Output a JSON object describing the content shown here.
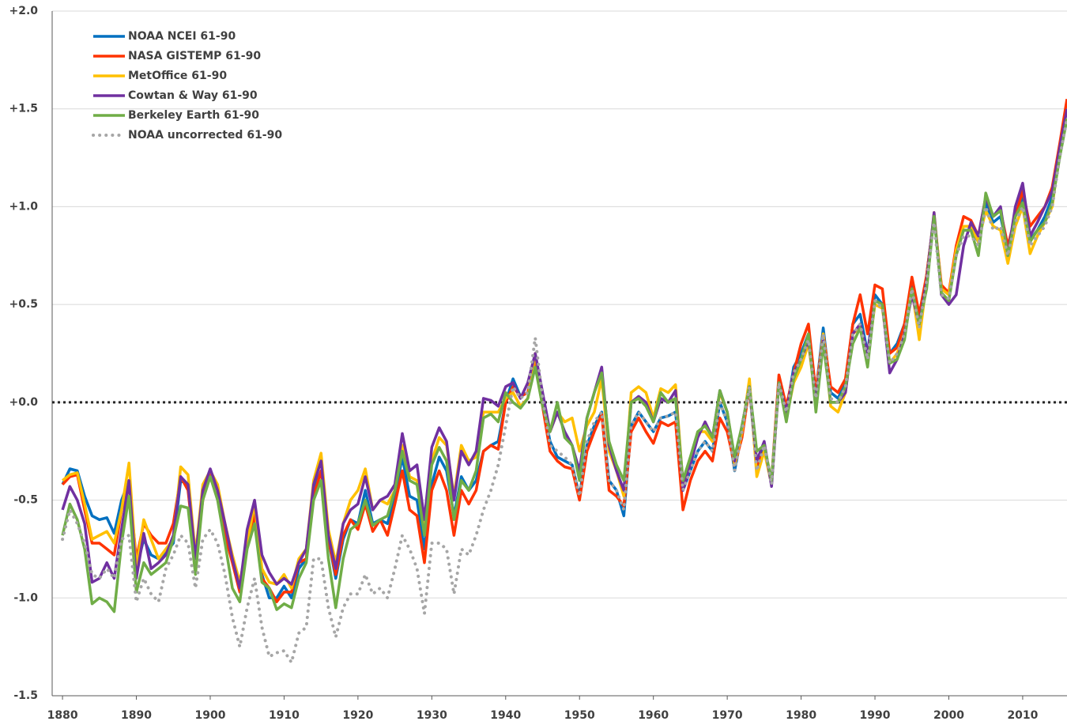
{
  "chart_data": {
    "type": "line",
    "x": [
      1880,
      1881,
      1882,
      1883,
      1884,
      1885,
      1886,
      1887,
      1888,
      1889,
      1890,
      1891,
      1892,
      1893,
      1894,
      1895,
      1896,
      1897,
      1898,
      1899,
      1900,
      1901,
      1902,
      1903,
      1904,
      1905,
      1906,
      1907,
      1908,
      1909,
      1910,
      1911,
      1912,
      1913,
      1914,
      1915,
      1916,
      1917,
      1918,
      1919,
      1920,
      1921,
      1922,
      1923,
      1924,
      1925,
      1926,
      1927,
      1928,
      1929,
      1930,
      1931,
      1932,
      1933,
      1934,
      1935,
      1936,
      1937,
      1938,
      1939,
      1940,
      1941,
      1942,
      1943,
      1944,
      1945,
      1946,
      1947,
      1948,
      1949,
      1950,
      1951,
      1952,
      1953,
      1954,
      1955,
      1956,
      1957,
      1958,
      1959,
      1960,
      1961,
      1962,
      1963,
      1964,
      1965,
      1966,
      1967,
      1968,
      1969,
      1970,
      1971,
      1972,
      1973,
      1974,
      1975,
      1976,
      1977,
      1978,
      1979,
      1980,
      1981,
      1982,
      1983,
      1984,
      1985,
      1986,
      1987,
      1988,
      1989,
      1990,
      1991,
      1992,
      1993,
      1994,
      1995,
      1996,
      1997,
      1998,
      1999,
      2000,
      2001,
      2002,
      2003,
      2004,
      2005,
      2006,
      2007,
      2008,
      2009,
      2010,
      2011,
      2012,
      2013,
      2014,
      2015,
      2016
    ],
    "series": [
      {
        "name": "NOAA NCEI 61-90",
        "color": "#0070c0",
        "values": [
          -0.42,
          -0.34,
          -0.35,
          -0.48,
          -0.58,
          -0.6,
          -0.59,
          -0.67,
          -0.5,
          -0.4,
          -0.85,
          -0.7,
          -0.78,
          -0.8,
          -0.77,
          -0.72,
          -0.4,
          -0.42,
          -0.78,
          -0.45,
          -0.36,
          -0.45,
          -0.65,
          -0.8,
          -0.95,
          -0.72,
          -0.55,
          -0.88,
          -1.0,
          -1.0,
          -0.94,
          -1.0,
          -0.85,
          -0.8,
          -0.45,
          -0.35,
          -0.7,
          -0.9,
          -0.7,
          -0.6,
          -0.62,
          -0.45,
          -0.62,
          -0.6,
          -0.62,
          -0.48,
          -0.28,
          -0.48,
          -0.5,
          -0.75,
          -0.42,
          -0.28,
          -0.35,
          -0.58,
          -0.38,
          -0.45,
          -0.4,
          -0.25,
          -0.22,
          -0.2,
          0.0,
          0.12,
          0.03,
          0.05,
          0.22,
          0.0,
          -0.2,
          -0.28,
          -0.3,
          -0.32,
          -0.48,
          -0.22,
          -0.12,
          -0.05,
          -0.4,
          -0.45,
          -0.58,
          -0.12,
          -0.05,
          -0.1,
          -0.15,
          -0.08,
          -0.07,
          -0.05,
          -0.45,
          -0.35,
          -0.25,
          -0.2,
          -0.25,
          0.0,
          -0.1,
          -0.35,
          -0.15,
          0.08,
          -0.35,
          -0.22,
          -0.42,
          0.1,
          -0.05,
          0.18,
          0.25,
          0.35,
          0.05,
          0.38,
          0.05,
          0.02,
          0.1,
          0.4,
          0.45,
          0.25,
          0.55,
          0.5,
          0.25,
          0.3,
          0.4,
          0.6,
          0.4,
          0.65,
          0.95,
          0.58,
          0.55,
          0.78,
          0.88,
          0.88,
          0.82,
          1.02,
          0.92,
          0.95,
          0.78,
          0.95,
          1.05,
          0.83,
          0.88,
          0.95,
          1.05,
          1.3,
          1.5
        ]
      },
      {
        "name": "NASA GISTEMP 61-90",
        "color": "#ff3300",
        "values": [
          -0.42,
          -0.38,
          -0.37,
          -0.55,
          -0.72,
          -0.72,
          -0.75,
          -0.78,
          -0.55,
          -0.42,
          -0.8,
          -0.62,
          -0.68,
          -0.72,
          -0.72,
          -0.62,
          -0.38,
          -0.45,
          -0.8,
          -0.5,
          -0.36,
          -0.45,
          -0.68,
          -0.82,
          -0.97,
          -0.74,
          -0.58,
          -0.9,
          -0.95,
          -1.02,
          -0.97,
          -0.97,
          -0.82,
          -0.8,
          -0.48,
          -0.35,
          -0.7,
          -0.88,
          -0.68,
          -0.6,
          -0.65,
          -0.52,
          -0.66,
          -0.6,
          -0.68,
          -0.52,
          -0.35,
          -0.55,
          -0.58,
          -0.82,
          -0.45,
          -0.35,
          -0.45,
          -0.68,
          -0.45,
          -0.52,
          -0.45,
          -0.25,
          -0.22,
          -0.24,
          0.0,
          0.08,
          0.03,
          0.05,
          0.2,
          -0.02,
          -0.25,
          -0.3,
          -0.33,
          -0.34,
          -0.5,
          -0.25,
          -0.15,
          -0.06,
          -0.45,
          -0.48,
          -0.53,
          -0.15,
          -0.08,
          -0.15,
          -0.21,
          -0.1,
          -0.12,
          -0.1,
          -0.55,
          -0.4,
          -0.3,
          -0.25,
          -0.3,
          -0.08,
          -0.15,
          -0.32,
          -0.18,
          0.08,
          -0.32,
          -0.25,
          -0.4,
          0.14,
          -0.02,
          0.15,
          0.3,
          0.4,
          0.05,
          0.35,
          0.08,
          0.05,
          0.12,
          0.4,
          0.55,
          0.35,
          0.6,
          0.58,
          0.25,
          0.28,
          0.4,
          0.64,
          0.45,
          0.65,
          0.95,
          0.6,
          0.56,
          0.8,
          0.95,
          0.93,
          0.85,
          1.05,
          0.95,
          0.98,
          0.8,
          0.95,
          1.08,
          0.9,
          0.95,
          1.0,
          1.1,
          1.32,
          1.55
        ]
      },
      {
        "name": "MetOffice 61-90",
        "color": "#ffc000",
        "values": [
          -0.4,
          -0.37,
          -0.36,
          -0.52,
          -0.7,
          -0.68,
          -0.66,
          -0.72,
          -0.55,
          -0.31,
          -0.85,
          -0.6,
          -0.7,
          -0.8,
          -0.75,
          -0.7,
          -0.33,
          -0.37,
          -0.78,
          -0.42,
          -0.35,
          -0.42,
          -0.62,
          -0.78,
          -0.92,
          -0.72,
          -0.52,
          -0.85,
          -0.92,
          -0.93,
          -0.88,
          -0.95,
          -0.8,
          -0.75,
          -0.4,
          -0.26,
          -0.65,
          -0.82,
          -0.62,
          -0.5,
          -0.45,
          -0.34,
          -0.55,
          -0.5,
          -0.52,
          -0.45,
          -0.22,
          -0.38,
          -0.4,
          -0.65,
          -0.3,
          -0.18,
          -0.22,
          -0.48,
          -0.22,
          -0.3,
          -0.28,
          -0.05,
          -0.05,
          -0.05,
          0.02,
          0.05,
          -0.02,
          0.02,
          0.25,
          0.0,
          -0.15,
          -0.05,
          -0.1,
          -0.08,
          -0.25,
          -0.12,
          -0.05,
          0.12,
          -0.25,
          -0.35,
          -0.48,
          0.05,
          0.08,
          0.05,
          -0.08,
          0.07,
          0.05,
          0.09,
          -0.42,
          -0.3,
          -0.15,
          -0.15,
          -0.2,
          0.05,
          -0.05,
          -0.32,
          -0.15,
          0.12,
          -0.38,
          -0.25,
          -0.42,
          0.1,
          -0.08,
          0.1,
          0.18,
          0.3,
          0.0,
          0.35,
          -0.02,
          -0.05,
          0.05,
          0.35,
          0.38,
          0.22,
          0.5,
          0.48,
          0.2,
          0.25,
          0.35,
          0.58,
          0.32,
          0.62,
          0.97,
          0.58,
          0.55,
          0.78,
          0.9,
          0.9,
          0.82,
          0.98,
          0.9,
          0.88,
          0.71,
          0.9,
          1.0,
          0.76,
          0.85,
          0.92,
          1.0,
          1.28,
          1.45
        ]
      },
      {
        "name": "Cowtan & Way 61-90",
        "color": "#7030a0",
        "values": [
          -0.55,
          -0.43,
          -0.5,
          -0.62,
          -0.92,
          -0.9,
          -0.82,
          -0.9,
          -0.65,
          -0.4,
          -0.9,
          -0.67,
          -0.85,
          -0.82,
          -0.78,
          -0.68,
          -0.38,
          -0.42,
          -0.8,
          -0.45,
          -0.34,
          -0.45,
          -0.62,
          -0.8,
          -0.95,
          -0.65,
          -0.5,
          -0.78,
          -0.87,
          -0.93,
          -0.9,
          -0.93,
          -0.82,
          -0.75,
          -0.42,
          -0.3,
          -0.68,
          -0.85,
          -0.62,
          -0.55,
          -0.52,
          -0.38,
          -0.55,
          -0.5,
          -0.48,
          -0.42,
          -0.16,
          -0.35,
          -0.32,
          -0.6,
          -0.23,
          -0.13,
          -0.2,
          -0.5,
          -0.25,
          -0.32,
          -0.25,
          0.02,
          0.01,
          -0.02,
          0.08,
          0.1,
          0.02,
          0.1,
          0.25,
          0.05,
          -0.15,
          -0.05,
          -0.15,
          -0.22,
          -0.35,
          -0.08,
          0.05,
          0.18,
          -0.22,
          -0.35,
          -0.45,
          0.0,
          0.03,
          0.0,
          -0.1,
          0.02,
          0.0,
          0.06,
          -0.45,
          -0.32,
          -0.18,
          -0.1,
          -0.18,
          0.06,
          -0.05,
          -0.3,
          -0.12,
          0.08,
          -0.3,
          -0.2,
          -0.43,
          0.1,
          -0.05,
          0.15,
          0.22,
          0.32,
          0.0,
          0.32,
          0.0,
          0.0,
          0.05,
          0.35,
          0.4,
          0.25,
          0.52,
          0.5,
          0.15,
          0.22,
          0.35,
          0.55,
          0.4,
          0.62,
          0.97,
          0.55,
          0.5,
          0.55,
          0.8,
          0.92,
          0.85,
          1.05,
          0.95,
          1.0,
          0.75,
          1.0,
          1.12,
          0.85,
          0.92,
          1.0,
          1.08,
          1.3,
          1.5
        ]
      },
      {
        "name": "Berkeley Earth 61-90",
        "color": "#70ad47",
        "values": [
          -0.68,
          -0.52,
          -0.6,
          -0.75,
          -1.03,
          -1.0,
          -1.02,
          -1.07,
          -0.72,
          -0.48,
          -0.97,
          -0.82,
          -0.88,
          -0.85,
          -0.82,
          -0.7,
          -0.53,
          -0.54,
          -0.88,
          -0.5,
          -0.38,
          -0.5,
          -0.72,
          -0.95,
          -1.02,
          -0.75,
          -0.62,
          -0.92,
          -0.95,
          -1.06,
          -1.03,
          -1.05,
          -0.9,
          -0.82,
          -0.5,
          -0.4,
          -0.8,
          -1.05,
          -0.8,
          -0.65,
          -0.62,
          -0.5,
          -0.63,
          -0.6,
          -0.58,
          -0.45,
          -0.25,
          -0.4,
          -0.42,
          -0.68,
          -0.32,
          -0.23,
          -0.3,
          -0.6,
          -0.4,
          -0.45,
          -0.35,
          -0.08,
          -0.06,
          -0.1,
          0.05,
          0.0,
          -0.03,
          0.02,
          0.18,
          -0.02,
          -0.15,
          0.0,
          -0.18,
          -0.22,
          -0.4,
          -0.08,
          0.05,
          0.15,
          -0.2,
          -0.32,
          -0.4,
          0.0,
          0.02,
          -0.02,
          -0.1,
          0.05,
          0.0,
          0.02,
          -0.4,
          -0.28,
          -0.15,
          -0.12,
          -0.18,
          0.06,
          -0.05,
          -0.28,
          -0.12,
          0.08,
          -0.25,
          -0.22,
          -0.4,
          0.1,
          -0.1,
          0.12,
          0.22,
          0.35,
          -0.05,
          0.3,
          0.0,
          0.0,
          0.08,
          0.3,
          0.38,
          0.18,
          0.52,
          0.5,
          0.2,
          0.22,
          0.32,
          0.58,
          0.4,
          0.58,
          0.95,
          0.56,
          0.52,
          0.75,
          0.88,
          0.88,
          0.75,
          1.07,
          0.95,
          0.98,
          0.75,
          0.95,
          1.02,
          0.82,
          0.88,
          0.92,
          1.02,
          1.25,
          1.45
        ]
      },
      {
        "name": "NOAA uncorrected 61-90",
        "color": "#a6a6a6",
        "dash": "dot",
        "values": [
          -0.7,
          -0.55,
          -0.62,
          -0.72,
          -0.88,
          -0.9,
          -0.85,
          -0.9,
          -0.7,
          -0.68,
          -1.02,
          -0.9,
          -0.98,
          -1.02,
          -0.85,
          -0.78,
          -0.68,
          -0.72,
          -0.95,
          -0.7,
          -0.65,
          -0.72,
          -0.88,
          -1.1,
          -1.25,
          -1.05,
          -0.9,
          -1.15,
          -1.3,
          -1.28,
          -1.27,
          -1.33,
          -1.18,
          -1.15,
          -0.8,
          -0.8,
          -1.05,
          -1.2,
          -1.05,
          -0.98,
          -0.98,
          -0.88,
          -0.98,
          -0.95,
          -1.0,
          -0.85,
          -0.68,
          -0.75,
          -0.85,
          -1.08,
          -0.72,
          -0.72,
          -0.75,
          -0.98,
          -0.75,
          -0.78,
          -0.68,
          -0.55,
          -0.45,
          -0.32,
          -0.12,
          0.08,
          0.02,
          0.05,
          0.33,
          0.02,
          -0.22,
          -0.25,
          -0.28,
          -0.32,
          -0.48,
          -0.2,
          -0.1,
          -0.05,
          -0.4,
          -0.45,
          -0.55,
          -0.12,
          -0.05,
          -0.1,
          -0.15,
          -0.08,
          -0.07,
          -0.05,
          -0.45,
          -0.35,
          -0.25,
          -0.2,
          -0.25,
          0.0,
          -0.1,
          -0.35,
          -0.15,
          0.08,
          -0.35,
          -0.22,
          -0.42,
          0.1,
          -0.05,
          0.15,
          0.22,
          0.32,
          0.02,
          0.35,
          0.02,
          0.0,
          0.08,
          0.35,
          0.4,
          0.22,
          0.52,
          0.48,
          0.2,
          0.25,
          0.35,
          0.58,
          0.38,
          0.62,
          0.92,
          0.55,
          0.53,
          0.75,
          0.85,
          0.85,
          0.8,
          1.0,
          0.88,
          0.9,
          0.75,
          0.92,
          1.0,
          0.8,
          0.85,
          0.9,
          1.0,
          1.25,
          1.45
        ]
      }
    ],
    "xlim": [
      1878.6,
      2016
    ],
    "xticks": [
      1880,
      1890,
      1900,
      1910,
      1920,
      1930,
      1940,
      1950,
      1960,
      1970,
      1980,
      1990,
      2000,
      2010
    ],
    "ylim": [
      -1.5,
      2
    ],
    "yticks": [
      {
        "value": 2,
        "label": "+2.0"
      },
      {
        "value": 1.5,
        "label": "+1.5"
      },
      {
        "value": 1,
        "label": "+1.0"
      },
      {
        "value": 0.5,
        "label": "+0.5"
      },
      {
        "value": 0,
        "label": "+0.0"
      },
      -0.5,
      {
        "value": -1,
        "label": "-1.0"
      },
      -1.5
    ],
    "grid": true,
    "zero_line": true,
    "legend": "upper left"
  }
}
